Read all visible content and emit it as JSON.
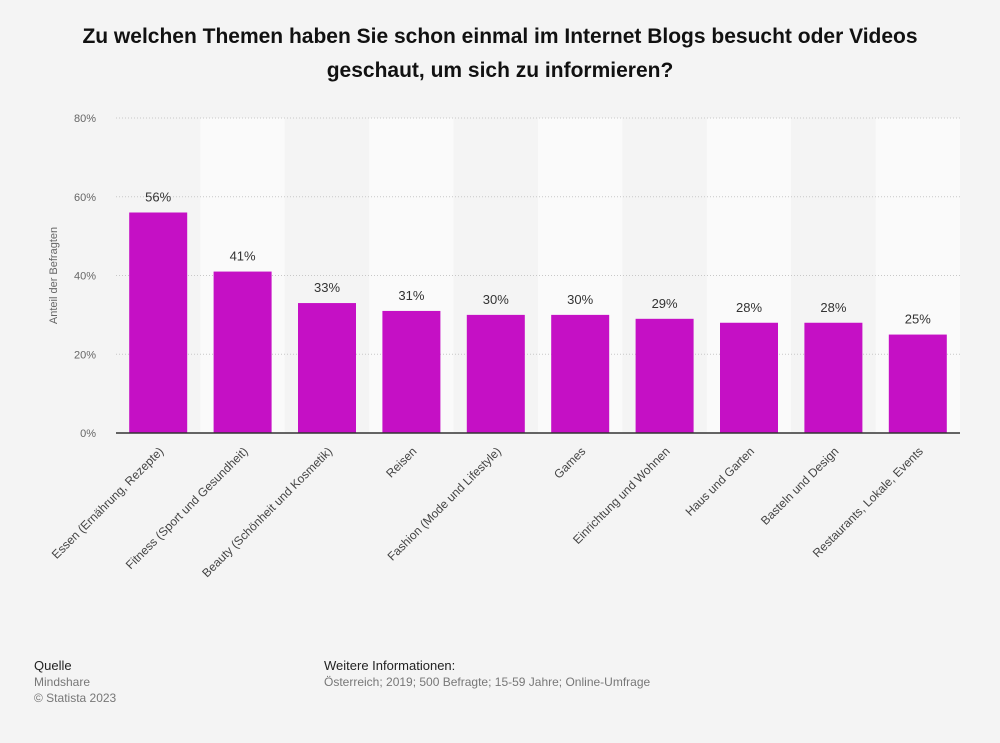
{
  "chart_data": {
    "type": "bar",
    "title": "Zu welchen Themen haben Sie schon einmal im Internet Blogs besucht oder Videos geschaut, um sich zu informieren?",
    "ylabel": "Anteil der Befragten",
    "xlabel": "",
    "ylim": [
      0,
      80
    ],
    "yticks": [
      0,
      20,
      40,
      60,
      80
    ],
    "ytick_labels": [
      "0%",
      "20%",
      "40%",
      "60%",
      "80%"
    ],
    "grid": true,
    "categories": [
      "Essen (Ernährung, Rezepte)",
      "Fitness (Sport und Gesundheit)",
      "Beauty (Schönheit und Kosmetik)",
      "Reisen",
      "Fashion (Mode und Lifestyle)",
      "Games",
      "Einrichtung und Wohnen",
      "Haus und Garten",
      "Basteln und Design",
      "Restaurants, Lokale, Events"
    ],
    "values": [
      56,
      41,
      33,
      31,
      30,
      30,
      29,
      28,
      28,
      25
    ],
    "value_labels": [
      "56%",
      "41%",
      "33%",
      "31%",
      "30%",
      "30%",
      "29%",
      "28%",
      "28%",
      "25%"
    ],
    "bar_color": "#c510c5"
  },
  "footer": {
    "source_heading": "Quelle",
    "source_name": "Mindshare",
    "copyright": "© Statista 2023",
    "info_heading": "Weitere Informationen:",
    "info_text": "Österreich; 2019; 500 Befragte; 15-59 Jahre; Online-Umfrage"
  }
}
